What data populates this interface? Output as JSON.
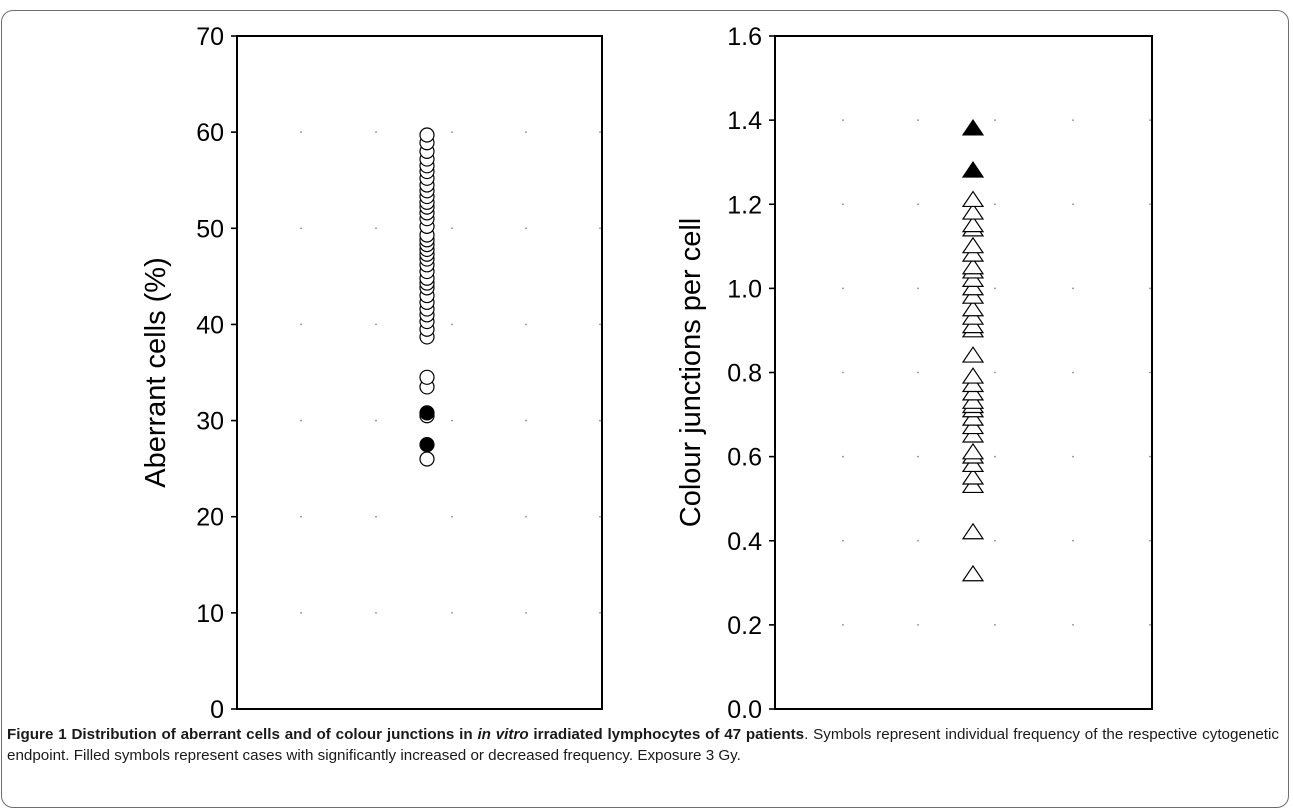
{
  "caption": {
    "title_a": "Figure 1 Distribution of aberrant cells and of colour junctions in ",
    "title_em": "in vitro",
    "title_b": " irradiated lymphocytes of 47 patients",
    "body": ". Symbols represent individual frequency of the respective cytogenetic endpoint. Filled symbols represent cases with significantly increased or decreased frequency. Exposure 3 Gy."
  },
  "chart_data": [
    {
      "type": "scatter",
      "title": "",
      "xlabel": "",
      "ylabel": "Aberrant cells (%)",
      "ylim": [
        0,
        70
      ],
      "yticks": [
        "0",
        "10",
        "20",
        "30",
        "40",
        "50",
        "60",
        "70"
      ],
      "grid": "dotted",
      "marker": "circle",
      "series": [
        {
          "fill": "#ffffff",
          "x": 1,
          "values": [
            26.0,
            30.5,
            33.5,
            34.5,
            38.7,
            39.5,
            40.3,
            41.0,
            41.6,
            42.3,
            43.0,
            43.8,
            44.3,
            44.8,
            45.5,
            46.2,
            46.8,
            47.3,
            47.8,
            48.3,
            48.8,
            49.3,
            50.2,
            51.0,
            51.6,
            52.2,
            52.7,
            53.3,
            53.9,
            54.5,
            55.2,
            55.9,
            56.5,
            57.2,
            58.0,
            58.9,
            59.7
          ]
        },
        {
          "fill": "#000000",
          "x": 1,
          "values": [
            27.5,
            30.8
          ]
        }
      ]
    },
    {
      "type": "scatter",
      "title": "",
      "xlabel": "",
      "ylabel": "Colour junctions per cell",
      "ylim": [
        0.0,
        1.6
      ],
      "yticks": [
        "0.0",
        "0.2",
        "0.4",
        "0.6",
        "0.8",
        "1.0",
        "1.2",
        "1.4",
        "1.6"
      ],
      "grid": "dotted",
      "marker": "triangle",
      "series": [
        {
          "fill": "#ffffff",
          "x": 1,
          "values": [
            0.32,
            0.42,
            0.53,
            0.55,
            0.58,
            0.6,
            0.61,
            0.65,
            0.67,
            0.69,
            0.71,
            0.72,
            0.73,
            0.75,
            0.77,
            0.79,
            0.84,
            0.9,
            0.91,
            0.93,
            0.95,
            0.98,
            1.0,
            1.02,
            1.04,
            1.05,
            1.08,
            1.1,
            1.14,
            1.15,
            1.18,
            1.21
          ]
        },
        {
          "fill": "#000000",
          "x": 1,
          "values": [
            1.28,
            1.38
          ]
        }
      ]
    }
  ]
}
